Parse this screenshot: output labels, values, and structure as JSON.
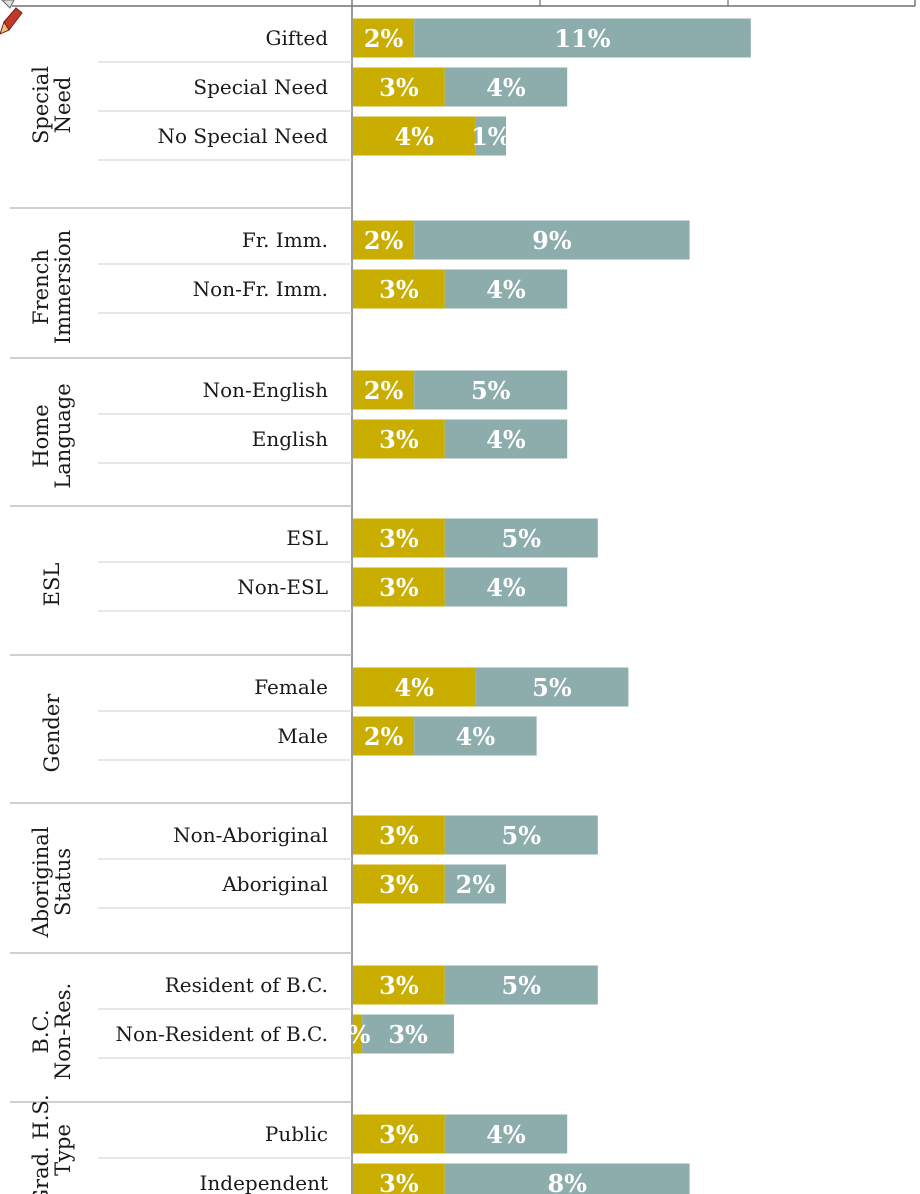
{
  "chart_data": {
    "type": "bar",
    "orientation": "horizontal",
    "stacked": true,
    "colors": {
      "series_a": "#c9ad00",
      "series_b": "#8cadac",
      "axis": "#7a7a7a",
      "divider": "#b5b5b5"
    },
    "series": [
      {
        "color": "#c9ad00",
        "values": [
          2,
          3,
          4,
          2,
          3,
          2,
          3,
          3,
          3,
          4,
          2,
          3,
          3,
          3,
          0.3,
          3,
          3
        ]
      },
      {
        "color": "#8cadac",
        "values": [
          11,
          4,
          1,
          9,
          4,
          5,
          4,
          5,
          4,
          5,
          4,
          5,
          2,
          5,
          3,
          4,
          8
        ]
      }
    ],
    "groups": [
      {
        "label": "Special Need",
        "categories": [
          {
            "label": "Gifted",
            "a": 2,
            "b": 11,
            "a_label": "2%",
            "b_label": "11%"
          },
          {
            "label": "Special Need",
            "a": 3,
            "b": 4,
            "a_label": "3%",
            "b_label": "4%"
          },
          {
            "label": "No Special Need",
            "a": 4,
            "b": 1,
            "a_label": "4%",
            "b_label": "1%"
          }
        ]
      },
      {
        "label": "French Immersion",
        "categories": [
          {
            "label": "Fr. Imm.",
            "a": 2,
            "b": 9,
            "a_label": "2%",
            "b_label": "9%"
          },
          {
            "label": "Non-Fr. Imm.",
            "a": 3,
            "b": 4,
            "a_label": "3%",
            "b_label": "4%"
          }
        ]
      },
      {
        "label": "Home Language",
        "categories": [
          {
            "label": "Non-English",
            "a": 2,
            "b": 5,
            "a_label": "2%",
            "b_label": "5%"
          },
          {
            "label": "English",
            "a": 3,
            "b": 4,
            "a_label": "3%",
            "b_label": "4%"
          }
        ]
      },
      {
        "label": "ESL",
        "categories": [
          {
            "label": "ESL",
            "a": 3,
            "b": 5,
            "a_label": "3%",
            "b_label": "5%"
          },
          {
            "label": "Non-ESL",
            "a": 3,
            "b": 4,
            "a_label": "3%",
            "b_label": "4%"
          }
        ]
      },
      {
        "label": "Gender",
        "categories": [
          {
            "label": "Female",
            "a": 4,
            "b": 5,
            "a_label": "4%",
            "b_label": "5%"
          },
          {
            "label": "Male",
            "a": 2,
            "b": 4,
            "a_label": "2%",
            "b_label": "4%"
          }
        ]
      },
      {
        "label": "Aboriginal Status",
        "categories": [
          {
            "label": "Non-Aboriginal",
            "a": 3,
            "b": 5,
            "a_label": "3%",
            "b_label": "5%"
          },
          {
            "label": "Aboriginal",
            "a": 3,
            "b": 2,
            "a_label": "3%",
            "b_label": "2%"
          }
        ]
      },
      {
        "label": "B.C. Non-Res.",
        "categories": [
          {
            "label": "Resident of B.C.",
            "a": 3,
            "b": 5,
            "a_label": "3%",
            "b_label": "5%"
          },
          {
            "label": "Non-Resident of B.C.",
            "a": 0.3,
            "b": 3,
            "a_label": "%",
            "b_label": "3%"
          }
        ]
      },
      {
        "label": "Grad. H.S. Type",
        "categories": [
          {
            "label": "Public",
            "a": 3,
            "b": 4,
            "a_label": "3%",
            "b_label": "4%"
          },
          {
            "label": "Independent",
            "a": 3,
            "b": 8,
            "a_label": "3%",
            "b_label": "8%"
          }
        ]
      }
    ]
  }
}
